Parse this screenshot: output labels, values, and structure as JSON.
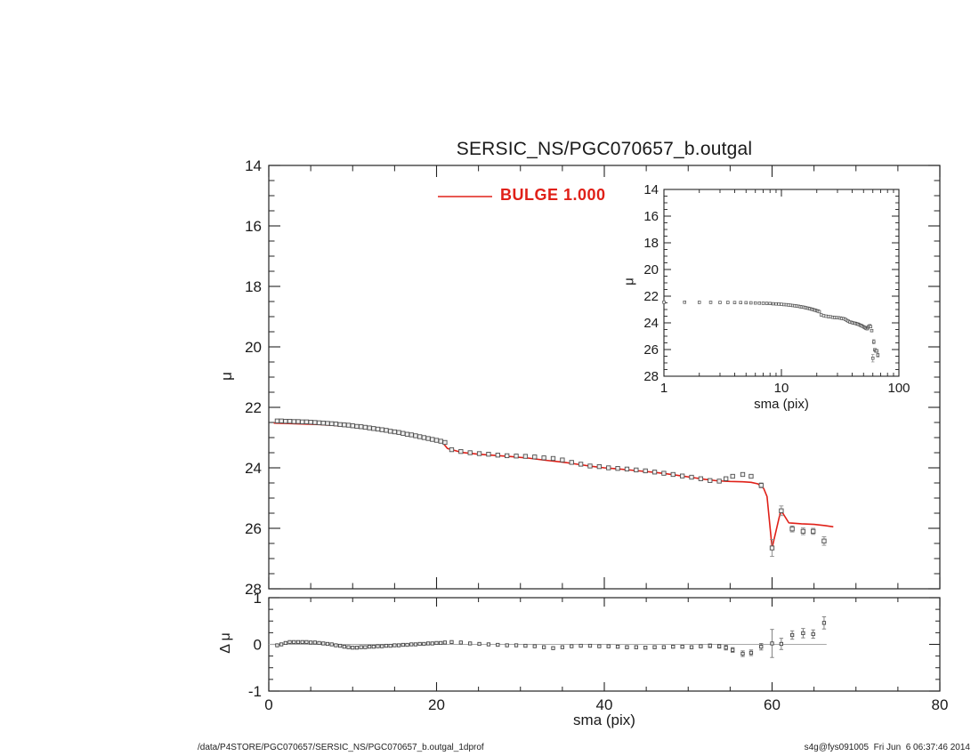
{
  "title": "SERSIC_NS/PGC070657_b.outgal",
  "legend": {
    "label": "BULGE  1.000",
    "color": "#e02018"
  },
  "footer": {
    "left": "/data/P4STORE/PGC070657/SERSIC_NS/PGC070657_b.outgal_1dprof",
    "right": "s4g@fys091005  Fri Jun  6 06:37:46 2014"
  },
  "colors": {
    "model_red": "#e02018",
    "frame": "#222222",
    "marker_edge": "#4f4f4f",
    "marker_fill": "#efefef",
    "error_bar": "#8a8a8a",
    "zero_line": "#a8a8a8",
    "background": "#ffffff"
  },
  "axes": {
    "main": {
      "ylabel": "μ",
      "xlim": [
        0,
        80
      ],
      "ylim": [
        14,
        28
      ],
      "y_inverted": true,
      "x_ticks": [
        0,
        20,
        40,
        60,
        80
      ],
      "x_minor_step": 5,
      "y_ticks": [
        14,
        16,
        18,
        20,
        22,
        24,
        26,
        28
      ],
      "y_minor_step": 0.5,
      "x_tick_labels_shown": false
    },
    "inset": {
      "ylabel": "μ",
      "xlabel": "sma (pix)",
      "xlog": true,
      "xlim": [
        1,
        100
      ],
      "ylim": [
        14,
        28
      ],
      "y_inverted": true,
      "x_ticks": [
        1,
        10,
        100
      ],
      "y_ticks": [
        14,
        16,
        18,
        20,
        22,
        24,
        26,
        28
      ],
      "y_minor_step": 0.5
    },
    "residual": {
      "ylabel": "Δ μ",
      "xlabel": "sma (pix)",
      "xlim": [
        0,
        80
      ],
      "ylim": [
        -1,
        1
      ],
      "x_ticks": [
        0,
        20,
        40,
        60,
        80
      ],
      "x_minor_step": 5,
      "y_ticks": [
        1,
        0,
        -1
      ],
      "y_minor_step": 0.25
    }
  },
  "chart_data": {
    "type": "scatter",
    "panels": [
      "main: mu vs sma with BULGE model overlay",
      "inset: same data, log x-axis",
      "residual: delta-mu vs sma with zero line"
    ],
    "data_series": {
      "name": "PGC070657 1D profile",
      "marker": "open-square",
      "x": [
        1,
        1.5,
        2,
        2.5,
        3,
        3.5,
        4,
        4.5,
        5,
        5.5,
        6,
        6.5,
        7,
        7.5,
        8,
        8.5,
        9,
        9.5,
        10,
        10.5,
        11,
        11.5,
        12,
        12.5,
        13,
        13.5,
        14,
        14.5,
        15,
        15.5,
        16,
        16.5,
        17,
        17.5,
        18,
        18.5,
        19,
        19.5,
        20,
        20.5,
        21,
        21.8,
        22.9,
        24,
        25.1,
        26.2,
        27.3,
        28.4,
        29.5,
        30.6,
        31.7,
        32.8,
        33.9,
        35,
        36.1,
        37.2,
        38.3,
        39.4,
        40.5,
        41.6,
        42.7,
        43.8,
        44.9,
        46,
        47.1,
        48.2,
        49.3,
        50.4,
        51.5,
        52.6,
        53.7,
        54.5,
        55.3,
        56.5,
        57.5,
        58.7,
        60,
        61.1,
        62.4,
        63.7,
        64.9,
        66.2
      ],
      "mu": [
        22.45,
        22.45,
        22.46,
        22.46,
        22.47,
        22.47,
        22.48,
        22.48,
        22.49,
        22.5,
        22.51,
        22.52,
        22.53,
        22.54,
        22.55,
        22.57,
        22.58,
        22.59,
        22.61,
        22.63,
        22.64,
        22.66,
        22.68,
        22.7,
        22.72,
        22.74,
        22.76,
        22.79,
        22.81,
        22.83,
        22.86,
        22.89,
        22.91,
        22.94,
        22.97,
        23,
        23.03,
        23.06,
        23.09,
        23.12,
        23.16,
        23.4,
        23.46,
        23.5,
        23.53,
        23.55,
        23.58,
        23.6,
        23.61,
        23.62,
        23.64,
        23.67,
        23.69,
        23.74,
        23.82,
        23.88,
        23.94,
        23.96,
        24,
        24.02,
        24.04,
        24.07,
        24.1,
        24.14,
        24.18,
        24.22,
        24.27,
        24.31,
        24.36,
        24.42,
        24.44,
        24.36,
        24.28,
        24.22,
        24.28,
        24.58,
        26.65,
        25.42,
        26.02,
        26.1,
        26.1,
        26.42
      ],
      "mu_err": [
        0.02,
        0.02,
        0.02,
        0.02,
        0.02,
        0.02,
        0.02,
        0.02,
        0.02,
        0.02,
        0.02,
        0.02,
        0.02,
        0.02,
        0.02,
        0.02,
        0.02,
        0.02,
        0.02,
        0.02,
        0.02,
        0.02,
        0.02,
        0.02,
        0.02,
        0.02,
        0.02,
        0.02,
        0.02,
        0.02,
        0.02,
        0.02,
        0.02,
        0.02,
        0.02,
        0.02,
        0.02,
        0.02,
        0.02,
        0.02,
        0.02,
        0.02,
        0.02,
        0.02,
        0.02,
        0.02,
        0.02,
        0.02,
        0.02,
        0.02,
        0.02,
        0.02,
        0.02,
        0.02,
        0.02,
        0.02,
        0.02,
        0.02,
        0.03,
        0.03,
        0.03,
        0.03,
        0.03,
        0.03,
        0.03,
        0.03,
        0.03,
        0.03,
        0.03,
        0.04,
        0.04,
        0.05,
        0.05,
        0.06,
        0.06,
        0.08,
        0.28,
        0.16,
        0.1,
        0.11,
        0.1,
        0.14
      ]
    },
    "model_series": {
      "name": "BULGE 1.000",
      "type": "line",
      "x": [
        0.6,
        2,
        4,
        6,
        8,
        10,
        12,
        14,
        16,
        18,
        20,
        20.6,
        21.3,
        23,
        25,
        27,
        29,
        31,
        33,
        35,
        37,
        38.5,
        40,
        41.5,
        43,
        44.5,
        46,
        47.5,
        49,
        50.5,
        52,
        53.5,
        55,
        56.5,
        57.5,
        58.3,
        59,
        59.4,
        60,
        61.05,
        62,
        63.5,
        65,
        66.3,
        67.3
      ],
      "mu": [
        22.52,
        22.53,
        22.55,
        22.57,
        22.6,
        22.64,
        22.7,
        22.77,
        22.86,
        22.95,
        23.06,
        23.12,
        23.36,
        23.49,
        23.55,
        23.59,
        23.63,
        23.68,
        23.75,
        23.81,
        23.89,
        23.95,
        24,
        24.03,
        24.07,
        24.11,
        24.15,
        24.2,
        24.26,
        24.32,
        24.38,
        24.43,
        24.45,
        24.46,
        24.48,
        24.53,
        24.68,
        24.95,
        26.65,
        25.4,
        25.82,
        25.85,
        25.87,
        25.91,
        25.95
      ]
    },
    "residual_series": {
      "x_same_as_data_series": true,
      "dmu": [
        -0.02,
        0,
        0.03,
        0.05,
        0.05,
        0.05,
        0.05,
        0.05,
        0.04,
        0.04,
        0.03,
        0.02,
        0.01,
        0,
        -0.02,
        -0.03,
        -0.05,
        -0.06,
        -0.07,
        -0.07,
        -0.06,
        -0.06,
        -0.05,
        -0.05,
        -0.04,
        -0.04,
        -0.03,
        -0.03,
        -0.02,
        -0.02,
        -0.01,
        -0.01,
        0,
        0,
        0.01,
        0.01,
        0.02,
        0.02,
        0.03,
        0.03,
        0.04,
        0.05,
        0.04,
        0.02,
        0.01,
        0,
        -0.01,
        -0.02,
        -0.02,
        -0.03,
        -0.04,
        -0.06,
        -0.08,
        -0.06,
        -0.04,
        -0.03,
        -0.03,
        -0.04,
        -0.04,
        -0.05,
        -0.06,
        -0.06,
        -0.07,
        -0.06,
        -0.06,
        -0.05,
        -0.05,
        -0.06,
        -0.04,
        -0.03,
        -0.04,
        -0.07,
        -0.12,
        -0.2,
        -0.18,
        -0.05,
        0.02,
        0.01,
        0.2,
        0.24,
        0.22,
        0.46
      ],
      "dmu_err": [
        0.01,
        0.01,
        0.01,
        0.01,
        0.01,
        0.01,
        0.01,
        0.01,
        0.01,
        0.01,
        0.01,
        0.01,
        0.01,
        0.01,
        0.01,
        0.01,
        0.01,
        0.01,
        0.01,
        0.01,
        0.01,
        0.01,
        0.01,
        0.01,
        0.01,
        0.01,
        0.01,
        0.01,
        0.01,
        0.01,
        0.01,
        0.01,
        0.01,
        0.01,
        0.01,
        0.01,
        0.01,
        0.01,
        0.01,
        0.01,
        0.01,
        0.01,
        0.01,
        0.01,
        0.01,
        0.01,
        0.01,
        0.01,
        0.01,
        0.01,
        0.01,
        0.01,
        0.01,
        0.01,
        0.01,
        0.01,
        0.01,
        0.01,
        0.03,
        0.03,
        0.03,
        0.03,
        0.03,
        0.03,
        0.03,
        0.03,
        0.03,
        0.03,
        0.03,
        0.04,
        0.04,
        0.05,
        0.05,
        0.06,
        0.06,
        0.07,
        0.3,
        0.12,
        0.09,
        0.1,
        0.09,
        0.13
      ],
      "zero_line_extent": [
        0,
        66.5
      ]
    }
  }
}
